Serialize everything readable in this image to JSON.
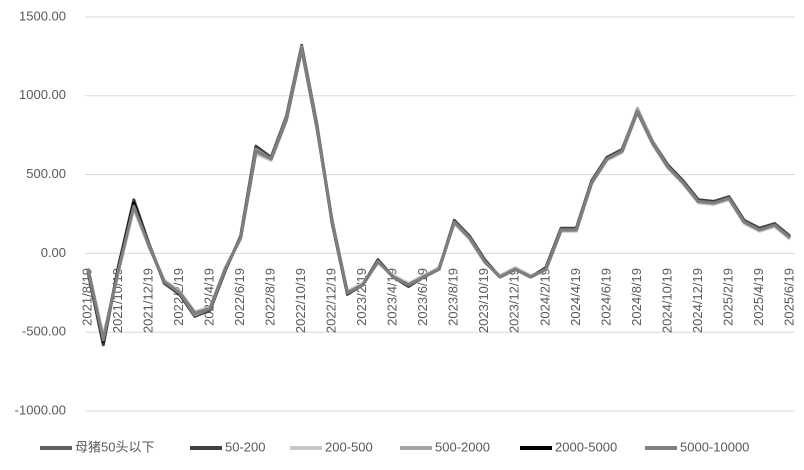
{
  "chart_data": {
    "type": "line",
    "categories": [
      "2021/8/19",
      null,
      "2021/10/19",
      null,
      "2021/12/19",
      null,
      "2022/2/19",
      null,
      "2022/4/19",
      null,
      "2022/6/19",
      null,
      "2022/8/19",
      null,
      "2022/10/19",
      null,
      "2022/12/19",
      null,
      "2023/2/19",
      null,
      "2023/4/19",
      null,
      "2023/6/19",
      null,
      "2023/8/19",
      null,
      "2023/10/19",
      null,
      "2023/12/19",
      null,
      "2024/2/19",
      null,
      "2024/4/19",
      null,
      "2024/6/19",
      null,
      "2024/8/19",
      null,
      "2024/10/19",
      null,
      "2024/12/19",
      null,
      "2025/2/19",
      null,
      "2025/4/19",
      null,
      "2025/6/19"
    ],
    "series": [
      {
        "name": "母猪50头以下",
        "color": "#606060",
        "values": [
          -100,
          -550,
          -100,
          300,
          50,
          -180,
          -250,
          -380,
          -350,
          -100,
          100,
          650,
          600,
          850,
          1300,
          800,
          200,
          -250,
          -200,
          -50,
          -150,
          -200,
          -150,
          -100,
          200,
          100,
          -50,
          -150,
          -100,
          -150,
          -100,
          150,
          150,
          450,
          600,
          650,
          900,
          700,
          550,
          450,
          330,
          320,
          350,
          200,
          150,
          180,
          100
        ]
      },
      {
        "name": "50-200",
        "color": "#404040",
        "values": [
          -120,
          -580,
          -80,
          340,
          60,
          -190,
          -260,
          -400,
          -360,
          -110,
          110,
          680,
          610,
          870,
          1320,
          820,
          190,
          -260,
          -200,
          -40,
          -150,
          -210,
          -150,
          -100,
          210,
          110,
          -40,
          -150,
          -100,
          -150,
          -90,
          160,
          160,
          460,
          610,
          660,
          910,
          710,
          560,
          460,
          340,
          330,
          360,
          210,
          160,
          190,
          110
        ]
      },
      {
        "name": "200-500",
        "color": "#c8c8c8",
        "values": [
          -90,
          -520,
          -120,
          280,
          40,
          -170,
          -240,
          -370,
          -340,
          -90,
          90,
          630,
          590,
          840,
          1290,
          790,
          210,
          -240,
          -190,
          -60,
          -140,
          -190,
          -140,
          -90,
          190,
          90,
          -60,
          -140,
          -90,
          -140,
          -110,
          140,
          140,
          440,
          590,
          640,
          890,
          690,
          540,
          440,
          320,
          310,
          340,
          190,
          140,
          170,
          90
        ]
      },
      {
        "name": "500-2000",
        "color": "#a6a6a6",
        "values": [
          -110,
          -540,
          -110,
          310,
          50,
          -180,
          -250,
          -390,
          -350,
          -100,
          100,
          660,
          600,
          860,
          1310,
          810,
          200,
          -250,
          -200,
          -50,
          -150,
          -200,
          -150,
          -100,
          200,
          100,
          -50,
          -150,
          -100,
          -150,
          -100,
          150,
          150,
          450,
          600,
          650,
          920,
          710,
          550,
          450,
          330,
          320,
          350,
          200,
          150,
          180,
          100
        ]
      },
      {
        "name": "2000-5000",
        "color": "#000000",
        "values": [
          -100,
          -560,
          -90,
          320,
          50,
          -180,
          -250,
          -380,
          -350,
          -100,
          100,
          650,
          600,
          850,
          1300,
          800,
          200,
          -250,
          -200,
          -50,
          -150,
          -200,
          -150,
          -100,
          200,
          100,
          -50,
          -150,
          -100,
          -150,
          -100,
          150,
          150,
          450,
          600,
          650,
          900,
          700,
          550,
          450,
          330,
          320,
          350,
          200,
          150,
          180,
          100
        ]
      },
      {
        "name": "5000-10000",
        "color": "#7f7f7f",
        "values": [
          -100,
          -550,
          -100,
          300,
          50,
          -180,
          -250,
          -380,
          -350,
          -100,
          100,
          650,
          600,
          850,
          1300,
          800,
          200,
          -250,
          -200,
          -50,
          -150,
          -200,
          -150,
          -100,
          200,
          100,
          -50,
          -150,
          -100,
          -150,
          -100,
          150,
          150,
          450,
          600,
          650,
          900,
          700,
          550,
          450,
          330,
          320,
          350,
          200,
          150,
          180,
          100
        ]
      }
    ],
    "ylim": [
      -1000,
      1500
    ],
    "yticks": [
      {
        "value": -1000,
        "label": "-1000.00"
      },
      {
        "value": -500,
        "label": "-500.00"
      },
      {
        "value": 0,
        "label": "0.00"
      },
      {
        "value": 500,
        "label": "500.00"
      },
      {
        "value": 1000,
        "label": "1000.00"
      },
      {
        "value": 1500,
        "label": "1500.00"
      }
    ],
    "grid": true,
    "legend": "bottom"
  }
}
